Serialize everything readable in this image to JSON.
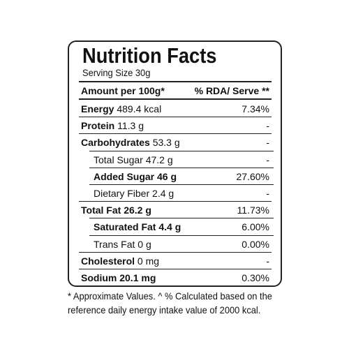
{
  "header": {
    "title": "Nutrition Facts",
    "serving": "Serving Size 30g"
  },
  "table": {
    "columns": [
      "Amount per 100g*",
      "% RDA/ Serve **"
    ],
    "rows": [
      {
        "name": "Energy",
        "amount": "489.4 kcal",
        "rda": "7.34%",
        "bold": false,
        "indent": false
      },
      {
        "name": "Protein",
        "amount": "11.3 g",
        "rda": "-",
        "bold": false,
        "indent": false
      },
      {
        "name": "Carbohydrates",
        "amount": "53.3 g",
        "rda": "-",
        "bold": false,
        "indent": false
      },
      {
        "name": "Total Sugar",
        "amount": "47.2 g",
        "rda": "-",
        "bold": false,
        "indent": true
      },
      {
        "name": "Added Sugar",
        "amount": "46 g",
        "rda": "27.60%",
        "bold": true,
        "indent": true
      },
      {
        "name": "Dietary Fiber",
        "amount": "2.4 g",
        "rda": "-",
        "bold": false,
        "indent": true
      },
      {
        "name": "Total Fat",
        "amount": "26.2 g",
        "rda": "11.73%",
        "bold": true,
        "indent": false
      },
      {
        "name": "Saturated Fat",
        "amount": "4.4 g",
        "rda": "6.00%",
        "bold": true,
        "indent": true
      },
      {
        "name": "Trans Fat",
        "amount": "0 g",
        "rda": "0.00%",
        "bold": false,
        "indent": true
      },
      {
        "name": "Cholesterol",
        "amount": "0 mg",
        "rda": "-",
        "bold": false,
        "indent": false
      },
      {
        "name": "Sodium",
        "amount": "20.1 mg",
        "rda": "0.30%",
        "bold": true,
        "indent": false
      }
    ]
  },
  "footnote": [
    "* Approximate Values. ^ % Calculated based on the",
    "reference daily energy intake value of 2000 kcal."
  ]
}
